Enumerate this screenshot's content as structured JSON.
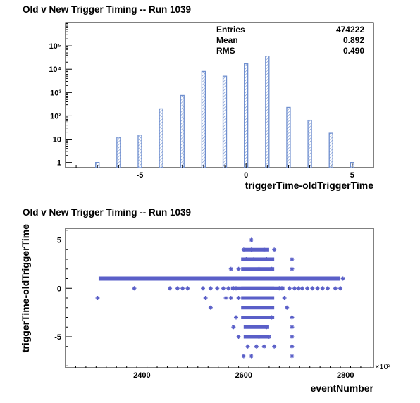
{
  "chart_data": [
    {
      "type": "bar",
      "title": "Old v New Trigger Timing -- Run 1039",
      "xlabel": "triggerTime-oldTriggerTime",
      "ylabel": "",
      "log_y": true,
      "xlim": [
        -8.5,
        6
      ],
      "ylim": [
        0.6,
        1000000
      ],
      "x_ticks": [
        -5,
        0,
        5
      ],
      "y_ticks": [
        "1",
        "10",
        "10²",
        "10³",
        "10⁴",
        "10⁵"
      ],
      "x": [
        -7,
        -6,
        -5,
        -4,
        -3,
        -2,
        -1,
        0,
        1,
        2,
        3,
        4,
        5
      ],
      "values": [
        1,
        12,
        15,
        200,
        750,
        8000,
        5000,
        17000,
        450000,
        230,
        65,
        18,
        1
      ],
      "bar_color": "#6f8fcf",
      "stats": {
        "entries_label": "Entries",
        "entries": "474222",
        "mean_label": "Mean",
        "mean": "0.892",
        "rms_label": "RMS",
        "rms": "0.490"
      }
    },
    {
      "type": "scatter",
      "title": "Old v New Trigger Timing -- Run 1039",
      "xlabel": "eventNumber",
      "ylabel": "triggerTime-oldTriggerTime",
      "x_multiplier": "×10³",
      "xlim": [
        2250,
        2855
      ],
      "ylim": [
        -8.2,
        6.2
      ],
      "x_ticks": [
        2400,
        2600,
        2800
      ],
      "y_ticks": [
        -5,
        0,
        5
      ],
      "marker_color": "#5a5fc8",
      "band_y1": {
        "x_start": 2315,
        "x_end": 2790
      },
      "dense_region": {
        "x_start": 2595,
        "x_end": 2660
      },
      "points": [
        [
          2313,
          -1
        ],
        [
          2385,
          0
        ],
        [
          2455,
          0
        ],
        [
          2470,
          0
        ],
        [
          2480,
          0
        ],
        [
          2490,
          0
        ],
        [
          2520,
          0
        ],
        [
          2525,
          -1
        ],
        [
          2535,
          0
        ],
        [
          2535,
          -2
        ],
        [
          2548,
          0
        ],
        [
          2560,
          0
        ],
        [
          2565,
          1
        ],
        [
          2570,
          0
        ],
        [
          2575,
          -1
        ],
        [
          2580,
          0
        ],
        [
          2585,
          0
        ],
        [
          2565,
          -1
        ],
        [
          2575,
          2
        ],
        [
          2590,
          2
        ],
        [
          2590,
          -1
        ],
        [
          2600,
          4
        ],
        [
          2605,
          3
        ],
        [
          2615,
          5
        ],
        [
          2615,
          4
        ],
        [
          2620,
          3
        ],
        [
          2630,
          2
        ],
        [
          2640,
          4
        ],
        [
          2645,
          3
        ],
        [
          2655,
          2
        ],
        [
          2660,
          4
        ],
        [
          2665,
          1
        ],
        [
          2670,
          0
        ],
        [
          2675,
          0
        ],
        [
          2680,
          -1
        ],
        [
          2685,
          -2
        ],
        [
          2690,
          0
        ],
        [
          2695,
          3
        ],
        [
          2695,
          2
        ],
        [
          2695,
          -3
        ],
        [
          2695,
          -4
        ],
        [
          2695,
          -5
        ],
        [
          2695,
          -6
        ],
        [
          2695,
          -7
        ],
        [
          2700,
          0
        ],
        [
          2708,
          0
        ],
        [
          2715,
          0
        ],
        [
          2725,
          0
        ],
        [
          2735,
          0
        ],
        [
          2745,
          0
        ],
        [
          2755,
          0
        ],
        [
          2765,
          0
        ],
        [
          2780,
          0
        ],
        [
          2790,
          0
        ],
        [
          2795,
          1
        ],
        [
          2608,
          -6
        ],
        [
          2625,
          -6
        ],
        [
          2640,
          -6
        ],
        [
          2650,
          -5
        ],
        [
          2660,
          -6
        ],
        [
          2600,
          -7
        ],
        [
          2615,
          -7
        ],
        [
          2630,
          -5
        ],
        [
          2645,
          -4
        ],
        [
          2655,
          -3
        ],
        [
          2585,
          -3
        ],
        [
          2580,
          -4
        ],
        [
          2590,
          -5
        ]
      ]
    }
  ]
}
